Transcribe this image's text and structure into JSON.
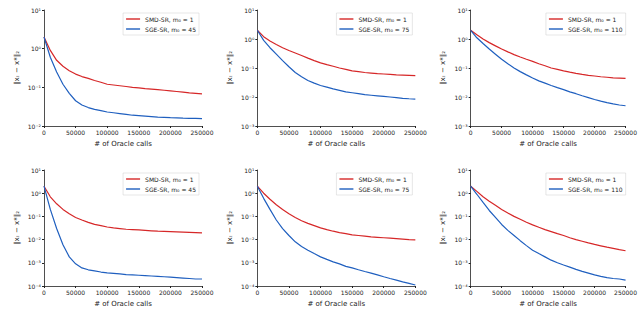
{
  "chart_data": [
    {
      "type": "line",
      "log": "y",
      "legend": "upper right",
      "xlabel": "# of Oracle calls",
      "ylabel": "‖xₜ − x*‖₂",
      "x": [
        0,
        10000,
        20000,
        30000,
        40000,
        50000,
        60000,
        70000,
        80000,
        90000,
        100000,
        110000,
        120000,
        130000,
        140000,
        150000,
        160000,
        170000,
        180000,
        190000,
        200000,
        210000,
        220000,
        230000,
        240000,
        250000
      ],
      "xlim": [
        0,
        250000
      ],
      "xticks": [
        0,
        50000,
        100000,
        150000,
        200000,
        250000
      ],
      "ylim": [
        0.01,
        10
      ],
      "yticks": [
        {
          "value": 0.01,
          "label": "10⁻²"
        },
        {
          "value": 0.1,
          "label": "10⁻¹"
        },
        {
          "value": 1,
          "label": "10⁰"
        },
        {
          "value": 10,
          "label": "10¹"
        }
      ],
      "series": [
        {
          "name": "SMD-SR, m₀ = 1",
          "color": "#d62728",
          "values": [
            2,
            0.9,
            0.5,
            0.35,
            0.27,
            0.22,
            0.19,
            0.17,
            0.15,
            0.135,
            0.12,
            0.115,
            0.11,
            0.105,
            0.1,
            0.097,
            0.093,
            0.09,
            0.087,
            0.084,
            0.081,
            0.078,
            0.075,
            0.072,
            0.07,
            0.068
          ]
        },
        {
          "name": "SGE-SR, m₀ = 45",
          "color": "#1f5fbf",
          "values": [
            2,
            0.6,
            0.25,
            0.12,
            0.07,
            0.045,
            0.035,
            0.03,
            0.027,
            0.025,
            0.023,
            0.022,
            0.021,
            0.02,
            0.019,
            0.0185,
            0.018,
            0.0175,
            0.017,
            0.0168,
            0.0165,
            0.0163,
            0.016,
            0.0158,
            0.0157,
            0.0155
          ]
        }
      ]
    },
    {
      "type": "line",
      "log": "y",
      "legend": "upper right",
      "xlabel": "# of Oracle calls",
      "ylabel": "‖xₜ − x*‖₂",
      "x": [
        0,
        10000,
        20000,
        30000,
        40000,
        50000,
        60000,
        70000,
        80000,
        90000,
        100000,
        110000,
        120000,
        130000,
        140000,
        150000,
        160000,
        170000,
        180000,
        190000,
        200000,
        210000,
        220000,
        230000,
        240000,
        250000
      ],
      "xlim": [
        0,
        250000
      ],
      "xticks": [
        0,
        50000,
        100000,
        150000,
        200000,
        250000
      ],
      "ylim": [
        0.001,
        10
      ],
      "yticks": [
        {
          "value": 0.001,
          "label": "10⁻³"
        },
        {
          "value": 0.01,
          "label": "10⁻²"
        },
        {
          "value": 0.1,
          "label": "10⁻¹"
        },
        {
          "value": 1,
          "label": "10⁰"
        },
        {
          "value": 10,
          "label": "10¹"
        }
      ],
      "series": [
        {
          "name": "SMD-SR, m₀ = 1",
          "color": "#d62728",
          "values": [
            2,
            1.2,
            0.85,
            0.65,
            0.5,
            0.4,
            0.33,
            0.27,
            0.22,
            0.18,
            0.15,
            0.13,
            0.115,
            0.1,
            0.09,
            0.08,
            0.075,
            0.07,
            0.067,
            0.064,
            0.062,
            0.06,
            0.058,
            0.057,
            0.056,
            0.055
          ]
        },
        {
          "name": "SGE-SR, m₀ = 75",
          "color": "#1f5fbf",
          "values": [
            2,
            0.9,
            0.5,
            0.3,
            0.18,
            0.11,
            0.07,
            0.05,
            0.037,
            0.03,
            0.025,
            0.022,
            0.019,
            0.017,
            0.015,
            0.014,
            0.013,
            0.012,
            0.0115,
            0.011,
            0.0105,
            0.01,
            0.0095,
            0.009,
            0.0087,
            0.0085
          ]
        }
      ]
    },
    {
      "type": "line",
      "log": "y",
      "legend": "upper right",
      "xlabel": "# of Oracle calls",
      "ylabel": "‖xₜ − x*‖₂",
      "x": [
        0,
        10000,
        20000,
        30000,
        40000,
        50000,
        60000,
        70000,
        80000,
        90000,
        100000,
        110000,
        120000,
        130000,
        140000,
        150000,
        160000,
        170000,
        180000,
        190000,
        200000,
        210000,
        220000,
        230000,
        240000,
        250000
      ],
      "xlim": [
        0,
        250000
      ],
      "xticks": [
        0,
        50000,
        100000,
        150000,
        200000,
        250000
      ],
      "ylim": [
        0.001,
        10
      ],
      "yticks": [
        {
          "value": 0.001,
          "label": "10⁻³"
        },
        {
          "value": 0.01,
          "label": "10⁻²"
        },
        {
          "value": 0.1,
          "label": "10⁻¹"
        },
        {
          "value": 1,
          "label": "10⁰"
        },
        {
          "value": 10,
          "label": "10¹"
        }
      ],
      "series": [
        {
          "name": "SMD-SR, m₀ = 1",
          "color": "#d62728",
          "values": [
            2,
            1.4,
            1.0,
            0.75,
            0.58,
            0.45,
            0.36,
            0.29,
            0.24,
            0.2,
            0.17,
            0.14,
            0.12,
            0.1,
            0.09,
            0.08,
            0.072,
            0.065,
            0.06,
            0.056,
            0.053,
            0.05,
            0.048,
            0.046,
            0.045,
            0.044
          ]
        },
        {
          "name": "SGE-SR, m₀ = 110",
          "color": "#1f5fbf",
          "values": [
            2,
            1.1,
            0.7,
            0.45,
            0.3,
            0.2,
            0.14,
            0.1,
            0.075,
            0.058,
            0.045,
            0.036,
            0.03,
            0.025,
            0.021,
            0.018,
            0.015,
            0.013,
            0.011,
            0.0095,
            0.0082,
            0.0072,
            0.0064,
            0.0058,
            0.0053,
            0.005
          ]
        }
      ]
    },
    {
      "type": "line",
      "log": "y",
      "legend": "upper right",
      "xlabel": "# of Oracle calls",
      "ylabel": "‖xₜ − x*‖₂",
      "x": [
        0,
        10000,
        20000,
        30000,
        40000,
        50000,
        60000,
        70000,
        80000,
        90000,
        100000,
        110000,
        120000,
        130000,
        140000,
        150000,
        160000,
        170000,
        180000,
        190000,
        200000,
        210000,
        220000,
        230000,
        240000,
        250000
      ],
      "xlim": [
        0,
        250000
      ],
      "xticks": [
        0,
        50000,
        100000,
        150000,
        200000,
        250000
      ],
      "ylim": [
        0.0001,
        10
      ],
      "yticks": [
        {
          "value": 0.0001,
          "label": "10⁻⁴"
        },
        {
          "value": 0.001,
          "label": "10⁻³"
        },
        {
          "value": 0.01,
          "label": "10⁻²"
        },
        {
          "value": 0.1,
          "label": "10⁻¹"
        },
        {
          "value": 1,
          "label": "10⁰"
        },
        {
          "value": 10,
          "label": "10¹"
        }
      ],
      "series": [
        {
          "name": "SMD-SR, m₀ = 1",
          "color": "#d62728",
          "values": [
            2,
            0.7,
            0.35,
            0.2,
            0.13,
            0.09,
            0.07,
            0.055,
            0.045,
            0.04,
            0.035,
            0.032,
            0.03,
            0.028,
            0.027,
            0.026,
            0.025,
            0.024,
            0.023,
            0.0225,
            0.022,
            0.0215,
            0.021,
            0.0205,
            0.02,
            0.0195
          ]
        },
        {
          "name": "SGE-SR, m₀ = 45",
          "color": "#1f5fbf",
          "values": [
            2,
            0.2,
            0.03,
            0.006,
            0.0018,
            0.0009,
            0.0006,
            0.0005,
            0.00045,
            0.0004,
            0.00037,
            0.00035,
            0.00033,
            0.00031,
            0.0003,
            0.00029,
            0.00028,
            0.00027,
            0.00026,
            0.00025,
            0.00024,
            0.00023,
            0.00022,
            0.00021,
            0.0002,
            0.0002
          ]
        }
      ]
    },
    {
      "type": "line",
      "log": "y",
      "legend": "upper right",
      "xlabel": "# of Oracle calls",
      "ylabel": "‖xₜ − x*‖₂",
      "x": [
        0,
        10000,
        20000,
        30000,
        40000,
        50000,
        60000,
        70000,
        80000,
        90000,
        100000,
        110000,
        120000,
        130000,
        140000,
        150000,
        160000,
        170000,
        180000,
        190000,
        200000,
        210000,
        220000,
        230000,
        240000,
        250000
      ],
      "xlim": [
        0,
        250000
      ],
      "xticks": [
        0,
        50000,
        100000,
        150000,
        200000,
        250000
      ],
      "ylim": [
        0.0001,
        10
      ],
      "yticks": [
        {
          "value": 0.0001,
          "label": "10⁻⁴"
        },
        {
          "value": 0.001,
          "label": "10⁻³"
        },
        {
          "value": 0.01,
          "label": "10⁻²"
        },
        {
          "value": 0.1,
          "label": "10⁻¹"
        },
        {
          "value": 1,
          "label": "10⁰"
        },
        {
          "value": 10,
          "label": "10¹"
        }
      ],
      "series": [
        {
          "name": "SMD-SR, m₀ = 1",
          "color": "#d62728",
          "values": [
            2,
            1.0,
            0.55,
            0.32,
            0.2,
            0.13,
            0.09,
            0.065,
            0.05,
            0.04,
            0.032,
            0.027,
            0.023,
            0.02,
            0.018,
            0.016,
            0.015,
            0.014,
            0.013,
            0.0125,
            0.012,
            0.0115,
            0.011,
            0.0105,
            0.01,
            0.0098
          ]
        },
        {
          "name": "SGE-SR, m₀ = 75",
          "color": "#1f5fbf",
          "values": [
            2,
            0.6,
            0.2,
            0.07,
            0.03,
            0.015,
            0.008,
            0.005,
            0.0035,
            0.0025,
            0.0018,
            0.0014,
            0.0011,
            0.0009,
            0.0007,
            0.0006,
            0.0005,
            0.00042,
            0.00036,
            0.0003,
            0.00025,
            0.00021,
            0.00018,
            0.00015,
            0.00013,
            0.00011
          ]
        }
      ]
    },
    {
      "type": "line",
      "log": "y",
      "legend": "upper right",
      "xlabel": "# of Oracle calls",
      "ylabel": "‖xₜ − x*‖₂",
      "x": [
        0,
        10000,
        20000,
        30000,
        40000,
        50000,
        60000,
        70000,
        80000,
        90000,
        100000,
        110000,
        120000,
        130000,
        140000,
        150000,
        160000,
        170000,
        180000,
        190000,
        200000,
        210000,
        220000,
        230000,
        240000,
        250000
      ],
      "xlim": [
        0,
        250000
      ],
      "xticks": [
        0,
        50000,
        100000,
        150000,
        200000,
        250000
      ],
      "ylim": [
        0.0001,
        10
      ],
      "yticks": [
        {
          "value": 0.0001,
          "label": "10⁻⁴"
        },
        {
          "value": 0.001,
          "label": "10⁻³"
        },
        {
          "value": 0.01,
          "label": "10⁻²"
        },
        {
          "value": 0.1,
          "label": "10⁻¹"
        },
        {
          "value": 1,
          "label": "10⁰"
        },
        {
          "value": 10,
          "label": "10¹"
        }
      ],
      "series": [
        {
          "name": "SMD-SR, m₀ = 1",
          "color": "#d62728",
          "values": [
            2,
            1.2,
            0.7,
            0.45,
            0.3,
            0.2,
            0.14,
            0.1,
            0.075,
            0.056,
            0.043,
            0.034,
            0.027,
            0.022,
            0.018,
            0.015,
            0.012,
            0.01,
            0.0085,
            0.0072,
            0.0062,
            0.0054,
            0.0047,
            0.0042,
            0.0037,
            0.0033
          ]
        },
        {
          "name": "SGE-SR, m₀ = 110",
          "color": "#1f5fbf",
          "values": [
            2,
            0.9,
            0.4,
            0.18,
            0.09,
            0.045,
            0.025,
            0.015,
            0.009,
            0.0055,
            0.0035,
            0.0025,
            0.0018,
            0.0013,
            0.001,
            0.0008,
            0.00065,
            0.00052,
            0.00043,
            0.00036,
            0.0003,
            0.00026,
            0.00023,
            0.00021,
            0.0002,
            0.00018
          ]
        }
      ]
    }
  ]
}
